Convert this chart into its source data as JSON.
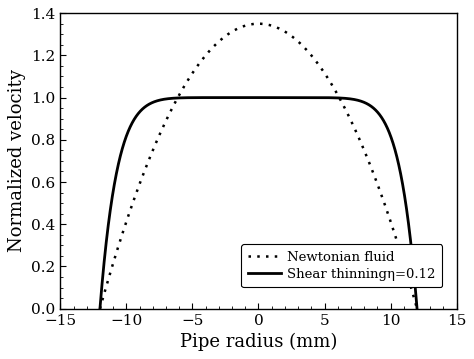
{
  "title": "",
  "xlabel": "Pipe radius (mm)",
  "ylabel": "Normalized velocity",
  "xlim": [
    -15,
    15
  ],
  "ylim": [
    0.0,
    1.4
  ],
  "xticks": [
    -15,
    -10,
    -5,
    0,
    5,
    10,
    15
  ],
  "yticks": [
    0.0,
    0.2,
    0.4,
    0.6,
    0.8,
    1.0,
    1.2,
    1.4
  ],
  "R_pipe": 12.0,
  "n_shear_thinning": 0.12,
  "newtonian_peak": 1.35,
  "legend_newtonian": "Newtonian fluid",
  "legend_shear": "Shear thinningη=0.12",
  "line_color": "black",
  "fontsize_label": 13,
  "fontsize_tick": 11,
  "dotted_linewidth": 1.8,
  "solid_linewidth": 2.0,
  "dot_size": 4.0
}
